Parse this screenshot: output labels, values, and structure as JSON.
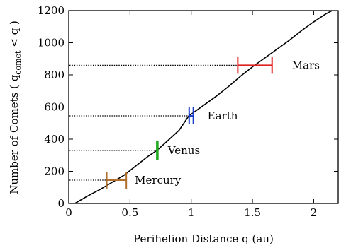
{
  "chart_data": {
    "type": "line",
    "xlabel": "Perihelion Distance q (au)",
    "ylabel_main": "Number of Comets ( q",
    "ylabel_sub": "comet",
    "ylabel_tail": " < q )",
    "xlim": [
      0,
      2.2
    ],
    "ylim": [
      0,
      1200
    ],
    "xticks": [
      0,
      0.5,
      1,
      1.5,
      2
    ],
    "xtick_labels": [
      "0",
      "0.5",
      "1",
      "1.5",
      "2"
    ],
    "yticks": [
      0,
      200,
      400,
      600,
      800,
      1000,
      1200
    ],
    "ytick_labels": [
      "0",
      "200",
      "400",
      "600",
      "800",
      "1000",
      "1200"
    ],
    "grid": false,
    "series": [
      {
        "x": [
          0.05,
          0.15,
          0.25,
          0.35,
          0.45,
          0.55,
          0.65,
          0.72,
          0.8,
          0.9,
          0.98,
          1.1,
          1.2,
          1.3,
          1.4,
          1.5,
          1.6,
          1.7,
          1.8,
          1.9,
          2.0,
          2.1,
          2.15
        ],
        "y": [
          0,
          45,
          85,
          130,
          175,
          235,
          295,
          330,
          385,
          455,
          545,
          610,
          665,
          725,
          790,
          850,
          905,
          960,
          1015,
          1075,
          1130,
          1180,
          1200
        ],
        "color": "#000000"
      }
    ],
    "planets": [
      {
        "name": "Mercury",
        "x": 0.39,
        "xmin": 0.31,
        "xmax": 0.47,
        "y": 145,
        "color": "#b0702c"
      },
      {
        "name": "Venus",
        "x": 0.72,
        "xmin": 0.718,
        "xmax": 0.728,
        "y": 330,
        "color": "#22aa22"
      },
      {
        "name": "Earth",
        "x": 1.0,
        "xmin": 0.983,
        "xmax": 1.017,
        "y": 545,
        "color": "#1a3fd0"
      },
      {
        "name": "Mars",
        "x": 1.52,
        "xmin": 1.38,
        "xmax": 1.66,
        "y": 860,
        "color": "#e02020"
      }
    ]
  }
}
